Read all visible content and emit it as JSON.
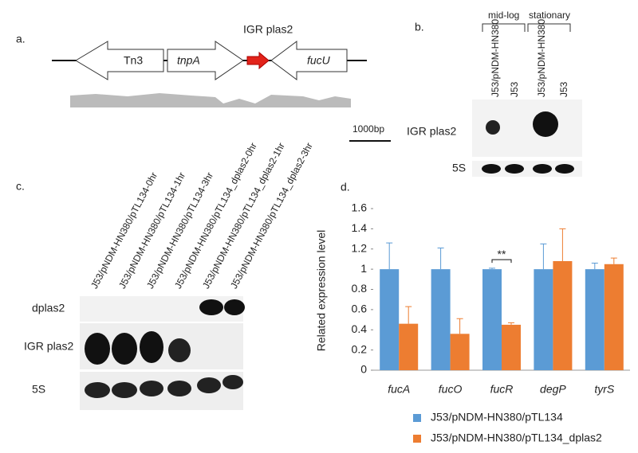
{
  "panel_a": {
    "label": "a.",
    "genes": [
      "Tn3",
      "tnpA",
      "fucU"
    ],
    "igr": "IGR plas2",
    "scale": "1000bp"
  },
  "panel_b": {
    "label": "b.",
    "groups": [
      "mid-log",
      "stationary"
    ],
    "lanes": [
      "J53/pNDM-HN380",
      "J53",
      "J53/pNDM-HN380",
      "J53"
    ],
    "rows": [
      "IGR plas2",
      "5S"
    ]
  },
  "panel_c": {
    "label": "c.",
    "lanes": [
      "J53/pNDM-HN380/pTL134-0hr",
      "J53/pNDM-HN380/pTL134-1hr",
      "J53/pNDM-HN380/pTL134-3hr",
      "J53/pNDM-HN380/pTL134_dplas2-0hr",
      "J53/pNDM-HN380/pTL134_dplas2-1hr",
      "J53/pNDM-HN380/pTL134_dplas2-3hr"
    ],
    "rows": [
      "dplas2",
      "IGR plas2",
      "5S"
    ]
  },
  "chart_data": {
    "type": "bar",
    "label": "d.",
    "y_label": "Related expression level",
    "categories": [
      "fucA",
      "fucO",
      "fucR",
      "degP",
      "tyrS"
    ],
    "series": [
      {
        "name": "J53/pNDM-HN380/pTL134",
        "color": "#5b9bd5",
        "values": [
          1,
          1,
          1,
          1,
          1
        ],
        "errors": [
          0.26,
          0.21,
          0.01,
          0.25,
          0.06
        ]
      },
      {
        "name": "J53/pNDM-HN380/pTL134_dplas2",
        "color": "#ed7d31",
        "values": [
          0.46,
          0.36,
          0.45,
          1.08,
          1.05
        ],
        "errors": [
          0.17,
          0.15,
          0.02,
          0.32,
          0.06
        ]
      }
    ],
    "ylim": [
      0,
      1.6
    ],
    "yticks": [
      0,
      0.2,
      0.4,
      0.6,
      0.8,
      1,
      1.2,
      1.4,
      1.6
    ],
    "annotation": "**"
  }
}
